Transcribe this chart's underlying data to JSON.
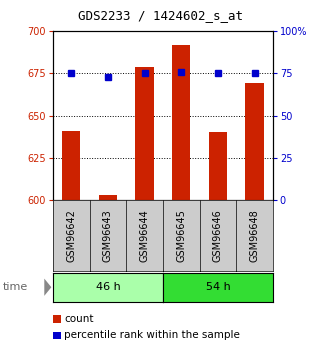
{
  "title": "GDS2233 / 1424602_s_at",
  "samples": [
    "GSM96642",
    "GSM96643",
    "GSM96644",
    "GSM96645",
    "GSM96646",
    "GSM96648"
  ],
  "counts": [
    641,
    603,
    679,
    692,
    640,
    669
  ],
  "percentiles": [
    75,
    73,
    75,
    76,
    75,
    75
  ],
  "ylim_left": [
    600,
    700
  ],
  "ylim_right": [
    0,
    100
  ],
  "yticks_left": [
    600,
    625,
    650,
    675,
    700
  ],
  "yticks_right": [
    0,
    25,
    50,
    75,
    100
  ],
  "groups": [
    {
      "label": "46 h",
      "samples": [
        0,
        1,
        2
      ],
      "color": "#aaffaa"
    },
    {
      "label": "54 h",
      "samples": [
        3,
        4,
        5
      ],
      "color": "#33dd33"
    }
  ],
  "bar_color": "#cc2200",
  "dot_color": "#0000cc",
  "bar_width": 0.5,
  "left_tick_color": "#cc2200",
  "right_tick_color": "#0000cc",
  "legend_count_color": "#cc2200",
  "legend_pct_color": "#0000cc",
  "legend_count": "count",
  "legend_pct": "percentile rank within the sample",
  "box_color": "#cccccc",
  "title_fontsize": 9,
  "tick_fontsize": 7,
  "label_fontsize": 7,
  "group_fontsize": 8,
  "legend_fontsize": 7.5
}
